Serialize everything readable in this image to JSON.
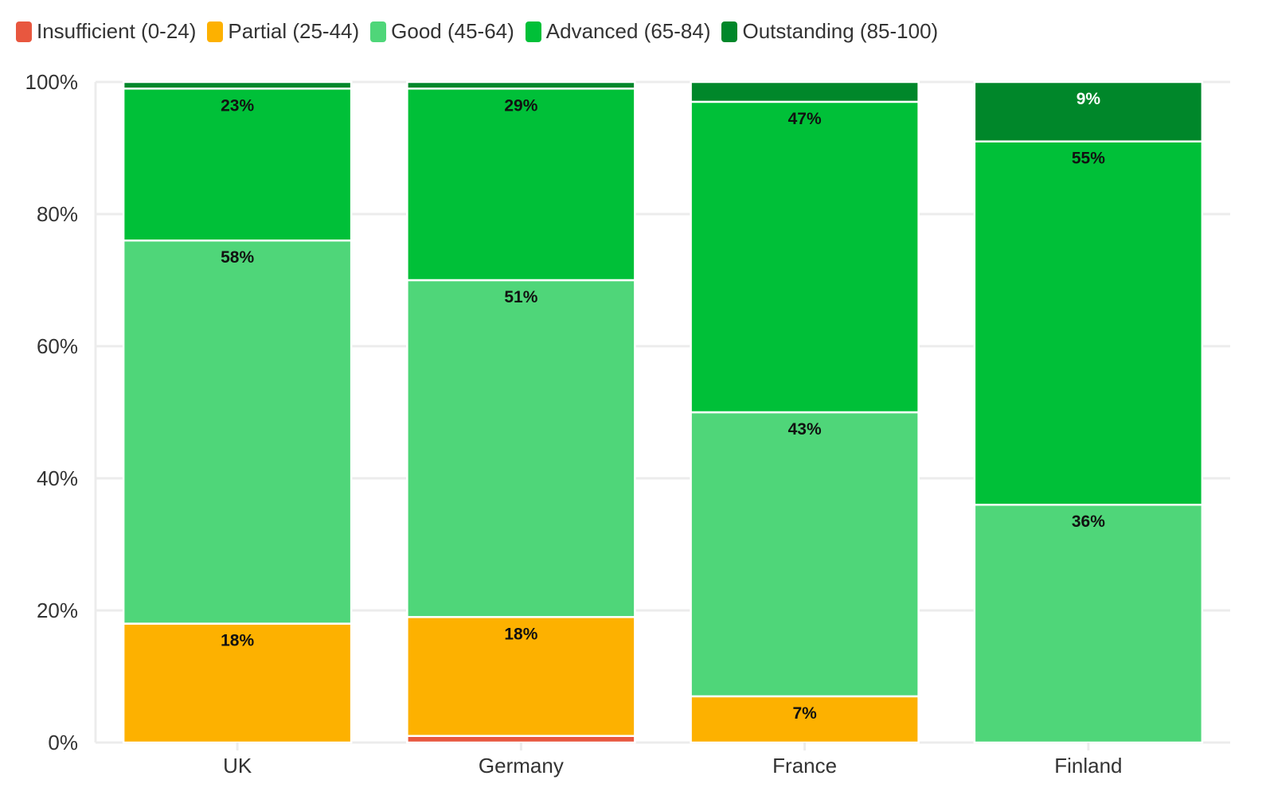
{
  "chart_data": {
    "type": "bar",
    "stacked": true,
    "categories": [
      "UK",
      "Germany",
      "France",
      "Finland"
    ],
    "series": [
      {
        "name": "Insufficient (0-24)",
        "color": "#e8573f",
        "values": [
          0,
          1,
          0,
          0
        ],
        "labels": [
          "",
          "",
          "",
          ""
        ]
      },
      {
        "name": "Partial (25-44)",
        "color": "#fdb100",
        "values": [
          18,
          18,
          7,
          0
        ],
        "labels": [
          "18%",
          "18%",
          "7%",
          ""
        ]
      },
      {
        "name": "Good (45-64)",
        "color": "#4fd679",
        "values": [
          58,
          51,
          43,
          36
        ],
        "labels": [
          "58%",
          "51%",
          "43%",
          "36%"
        ]
      },
      {
        "name": "Advanced (65-84)",
        "color": "#00c038",
        "values": [
          23,
          29,
          47,
          55
        ],
        "labels": [
          "23%",
          "29%",
          "47%",
          "55%"
        ]
      },
      {
        "name": "Outstanding (85-100)",
        "color": "#00872a",
        "values": [
          1,
          1,
          3,
          9
        ],
        "labels": [
          "",
          "",
          "",
          "9%"
        ]
      }
    ],
    "ylim": [
      0,
      100
    ],
    "yticks": [
      "0%",
      "20%",
      "40%",
      "60%",
      "80%",
      "100%"
    ],
    "grid": true,
    "legend_position": "top-left"
  }
}
